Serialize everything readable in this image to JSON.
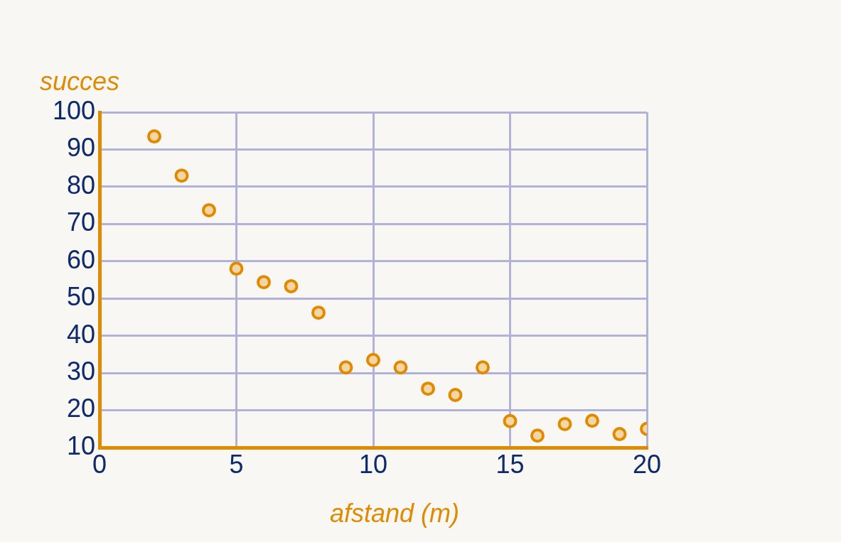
{
  "chart_data": {
    "type": "scatter",
    "xlabel": "afstand (m)",
    "ylabel": "succes",
    "x": [
      2,
      3,
      4,
      5,
      6,
      7,
      8,
      9,
      10,
      11,
      12,
      13,
      14,
      15,
      16,
      17,
      18,
      19,
      20
    ],
    "values": [
      93.5,
      83,
      73.7,
      58,
      54.4,
      53.3,
      46.2,
      31.5,
      33.5,
      31.5,
      25.8,
      24.1,
      31.5,
      17.1,
      13.2,
      16.3,
      17.2,
      13.6,
      15
    ],
    "color": "#e08a00",
    "marker": "circle",
    "xlim": [
      0,
      20
    ],
    "xticks": [
      0,
      5,
      10,
      15,
      20
    ],
    "ylim": [
      10,
      100
    ],
    "yticks": [
      10,
      20,
      30,
      40,
      50,
      60,
      70,
      80,
      90,
      100
    ],
    "grid": true,
    "legend": false
  }
}
